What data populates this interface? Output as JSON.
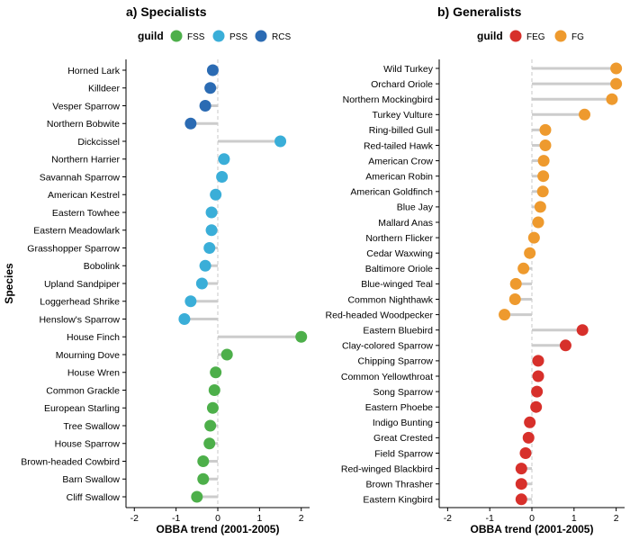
{
  "chart_data": [
    {
      "type": "scatter",
      "subtype": "lollipop",
      "title": "a) Specialists",
      "xlabel": "OBBA trend (2001-2005)",
      "ylabel": "Species",
      "xlim": [
        -2.2,
        2.2
      ],
      "xticks": [
        "-2",
        "-1",
        "0",
        "1",
        "2"
      ],
      "legend": {
        "title": "guild",
        "position": "top",
        "entries": [
          {
            "name": "FSS",
            "color": "#4daf4a"
          },
          {
            "name": "PSS",
            "color": "#3aaed8"
          },
          {
            "name": "RCS",
            "color": "#2b6bb3"
          }
        ]
      },
      "points": [
        {
          "species": "Horned Lark",
          "trend": -0.12,
          "guild": "RCS"
        },
        {
          "species": "Killdeer",
          "trend": -0.18,
          "guild": "RCS"
        },
        {
          "species": "Vesper Sparrow",
          "trend": -0.3,
          "guild": "RCS"
        },
        {
          "species": "Northern Bobwite",
          "trend": -0.65,
          "guild": "RCS"
        },
        {
          "species": "Dickcissel",
          "trend": 1.5,
          "guild": "PSS"
        },
        {
          "species": "Northern Harrier",
          "trend": 0.15,
          "guild": "PSS"
        },
        {
          "species": "Savannah Sparrow",
          "trend": 0.1,
          "guild": "PSS"
        },
        {
          "species": "American Kestrel",
          "trend": -0.05,
          "guild": "PSS"
        },
        {
          "species": "Eastern Towhee",
          "trend": -0.15,
          "guild": "PSS"
        },
        {
          "species": "Eastern Meadowlark",
          "trend": -0.15,
          "guild": "PSS"
        },
        {
          "species": "Grasshopper Sparrow",
          "trend": -0.2,
          "guild": "PSS"
        },
        {
          "species": "Bobolink",
          "trend": -0.3,
          "guild": "PSS"
        },
        {
          "species": "Upland Sandpiper",
          "trend": -0.38,
          "guild": "PSS"
        },
        {
          "species": "Loggerhead Shrike",
          "trend": -0.65,
          "guild": "PSS"
        },
        {
          "species": "Henslow's Sparrow",
          "trend": -0.8,
          "guild": "PSS"
        },
        {
          "species": "House Finch",
          "trend": 2.0,
          "guild": "FSS"
        },
        {
          "species": "Mourning Dove",
          "trend": 0.22,
          "guild": "FSS"
        },
        {
          "species": "House Wren",
          "trend": -0.05,
          "guild": "FSS"
        },
        {
          "species": "Common Grackle",
          "trend": -0.08,
          "guild": "FSS"
        },
        {
          "species": "European Starling",
          "trend": -0.12,
          "guild": "FSS"
        },
        {
          "species": "Tree Swallow",
          "trend": -0.18,
          "guild": "FSS"
        },
        {
          "species": "House Sparrow",
          "trend": -0.2,
          "guild": "FSS"
        },
        {
          "species": "Brown-headed Cowbird",
          "trend": -0.35,
          "guild": "FSS"
        },
        {
          "species": "Barn Swallow",
          "trend": -0.35,
          "guild": "FSS"
        },
        {
          "species": "Cliff Swallow",
          "trend": -0.5,
          "guild": "FSS"
        }
      ]
    },
    {
      "type": "scatter",
      "subtype": "lollipop",
      "title": "b) Generalists",
      "xlabel": "OBBA trend (2001-2005)",
      "ylabel": "",
      "xlim": [
        -2.2,
        2.2
      ],
      "xticks": [
        "-2",
        "-1",
        "0",
        "1",
        "2"
      ],
      "legend": {
        "title": "guild",
        "position": "top",
        "entries": [
          {
            "name": "FEG",
            "color": "#d7302b"
          },
          {
            "name": "FG",
            "color": "#ee9a2e"
          }
        ]
      },
      "points": [
        {
          "species": "Wild Turkey",
          "trend": 2.0,
          "guild": "FG"
        },
        {
          "species": "Orchard Oriole",
          "trend": 2.0,
          "guild": "FG"
        },
        {
          "species": "Northern Mockingbird",
          "trend": 1.9,
          "guild": "FG"
        },
        {
          "species": "Turkey Vulture",
          "trend": 1.25,
          "guild": "FG"
        },
        {
          "species": "Ring-billed Gull",
          "trend": 0.32,
          "guild": "FG"
        },
        {
          "species": "Red-tailed Hawk",
          "trend": 0.32,
          "guild": "FG"
        },
        {
          "species": "American Crow",
          "trend": 0.28,
          "guild": "FG"
        },
        {
          "species": "American Robin",
          "trend": 0.27,
          "guild": "FG"
        },
        {
          "species": "American Goldfinch",
          "trend": 0.26,
          "guild": "FG"
        },
        {
          "species": "Blue Jay",
          "trend": 0.2,
          "guild": "FG"
        },
        {
          "species": "Mallard Anas",
          "trend": 0.15,
          "guild": "FG"
        },
        {
          "species": "Northern Flicker",
          "trend": 0.05,
          "guild": "FG"
        },
        {
          "species": "Cedar Waxwing",
          "trend": -0.05,
          "guild": "FG"
        },
        {
          "species": "Baltimore Oriole",
          "trend": -0.2,
          "guild": "FG"
        },
        {
          "species": "Blue-winged Teal",
          "trend": -0.38,
          "guild": "FG"
        },
        {
          "species": "Common Nighthawk",
          "trend": -0.4,
          "guild": "FG"
        },
        {
          "species": "Red-headed Woodpecker",
          "trend": -0.65,
          "guild": "FG"
        },
        {
          "species": "Eastern Bluebird",
          "trend": 1.2,
          "guild": "FEG"
        },
        {
          "species": "Clay-colored Sparrow",
          "trend": 0.8,
          "guild": "FEG"
        },
        {
          "species": "Chipping Sparrow",
          "trend": 0.15,
          "guild": "FEG"
        },
        {
          "species": "Common Yellowthroat",
          "trend": 0.15,
          "guild": "FEG"
        },
        {
          "species": "Song Sparrow",
          "trend": 0.12,
          "guild": "FEG"
        },
        {
          "species": "Eastern Phoebe",
          "trend": 0.1,
          "guild": "FEG"
        },
        {
          "species": "Indigo Bunting",
          "trend": -0.05,
          "guild": "FEG"
        },
        {
          "species": "Great Crested",
          "trend": -0.08,
          "guild": "FEG"
        },
        {
          "species": "Field Sparrow",
          "trend": -0.15,
          "guild": "FEG"
        },
        {
          "species": "Red-winged Blackbird",
          "trend": -0.25,
          "guild": "FEG"
        },
        {
          "species": "Brown Thrasher",
          "trend": -0.25,
          "guild": "FEG"
        },
        {
          "species": "Eastern Kingbird",
          "trend": -0.25,
          "guild": "FEG"
        }
      ]
    }
  ]
}
